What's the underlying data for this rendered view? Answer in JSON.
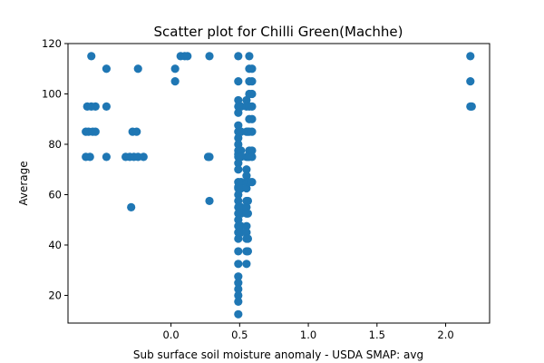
{
  "chart_data": {
    "type": "scatter",
    "title": "Scatter plot for Chilli Green(Machhe)",
    "xlabel": "Sub surface soil moisture anomaly - USDA SMAP: avg",
    "ylabel": "Average",
    "xlim": [
      -0.75,
      2.32
    ],
    "ylim": [
      9,
      120
    ],
    "xticks": [
      0.0,
      0.5,
      1.0,
      1.5,
      2.0
    ],
    "xtick_labels": [
      "0.0",
      "0.5",
      "1.0",
      "1.5",
      "2.0"
    ],
    "yticks": [
      20,
      40,
      60,
      80,
      100,
      120
    ],
    "ytick_labels": [
      "20",
      "40",
      "60",
      "80",
      "100",
      "120"
    ],
    "grid": false,
    "marker_color": "#1f77b4",
    "points": [
      {
        "x": -0.58,
        "y": 115
      },
      {
        "x": -0.47,
        "y": 110
      },
      {
        "x": -0.24,
        "y": 110
      },
      {
        "x": 0.03,
        "y": 110
      },
      {
        "x": 0.03,
        "y": 105
      },
      {
        "x": 0.07,
        "y": 115
      },
      {
        "x": 0.1,
        "y": 115
      },
      {
        "x": 0.12,
        "y": 115
      },
      {
        "x": 0.28,
        "y": 115
      },
      {
        "x": -0.61,
        "y": 95
      },
      {
        "x": -0.58,
        "y": 95
      },
      {
        "x": -0.55,
        "y": 95
      },
      {
        "x": -0.47,
        "y": 95
      },
      {
        "x": -0.62,
        "y": 85
      },
      {
        "x": -0.6,
        "y": 85
      },
      {
        "x": -0.57,
        "y": 85
      },
      {
        "x": -0.55,
        "y": 85
      },
      {
        "x": -0.28,
        "y": 85
      },
      {
        "x": -0.25,
        "y": 85
      },
      {
        "x": -0.62,
        "y": 75
      },
      {
        "x": -0.59,
        "y": 75
      },
      {
        "x": -0.47,
        "y": 75
      },
      {
        "x": -0.33,
        "y": 75
      },
      {
        "x": -0.3,
        "y": 75
      },
      {
        "x": -0.27,
        "y": 75
      },
      {
        "x": -0.24,
        "y": 75
      },
      {
        "x": -0.2,
        "y": 75
      },
      {
        "x": -0.29,
        "y": 55
      },
      {
        "x": 0.27,
        "y": 75
      },
      {
        "x": 0.28,
        "y": 75
      },
      {
        "x": 0.28,
        "y": 57.5
      },
      {
        "x": 0.49,
        "y": 115
      },
      {
        "x": 0.49,
        "y": 105
      },
      {
        "x": 0.49,
        "y": 97.5
      },
      {
        "x": 0.49,
        "y": 95
      },
      {
        "x": 0.49,
        "y": 92.5
      },
      {
        "x": 0.49,
        "y": 87.5
      },
      {
        "x": 0.49,
        "y": 85
      },
      {
        "x": 0.49,
        "y": 82.5
      },
      {
        "x": 0.49,
        "y": 80
      },
      {
        "x": 0.49,
        "y": 77.5
      },
      {
        "x": 0.49,
        "y": 76
      },
      {
        "x": 0.49,
        "y": 75
      },
      {
        "x": 0.49,
        "y": 72.5
      },
      {
        "x": 0.49,
        "y": 70
      },
      {
        "x": 0.49,
        "y": 65
      },
      {
        "x": 0.49,
        "y": 63
      },
      {
        "x": 0.49,
        "y": 62.5
      },
      {
        "x": 0.49,
        "y": 60
      },
      {
        "x": 0.49,
        "y": 57.5
      },
      {
        "x": 0.49,
        "y": 55
      },
      {
        "x": 0.49,
        "y": 52.5
      },
      {
        "x": 0.49,
        "y": 50
      },
      {
        "x": 0.49,
        "y": 47.5
      },
      {
        "x": 0.49,
        "y": 45
      },
      {
        "x": 0.49,
        "y": 42.5
      },
      {
        "x": 0.49,
        "y": 37.5
      },
      {
        "x": 0.49,
        "y": 32.5
      },
      {
        "x": 0.49,
        "y": 27.5
      },
      {
        "x": 0.49,
        "y": 25
      },
      {
        "x": 0.49,
        "y": 22.5
      },
      {
        "x": 0.49,
        "y": 20
      },
      {
        "x": 0.49,
        "y": 17.5
      },
      {
        "x": 0.49,
        "y": 12.5
      },
      {
        "x": 0.51,
        "y": 95
      },
      {
        "x": 0.51,
        "y": 85
      },
      {
        "x": 0.51,
        "y": 77.5
      },
      {
        "x": 0.51,
        "y": 75
      },
      {
        "x": 0.51,
        "y": 65
      },
      {
        "x": 0.51,
        "y": 62.5
      },
      {
        "x": 0.51,
        "y": 55
      },
      {
        "x": 0.51,
        "y": 52.5
      },
      {
        "x": 0.51,
        "y": 47.5
      },
      {
        "x": 0.51,
        "y": 45
      },
      {
        "x": 0.55,
        "y": 97.5
      },
      {
        "x": 0.55,
        "y": 95
      },
      {
        "x": 0.55,
        "y": 85
      },
      {
        "x": 0.55,
        "y": 75
      },
      {
        "x": 0.55,
        "y": 70
      },
      {
        "x": 0.55,
        "y": 67.5
      },
      {
        "x": 0.55,
        "y": 65
      },
      {
        "x": 0.55,
        "y": 62.5
      },
      {
        "x": 0.55,
        "y": 57.5
      },
      {
        "x": 0.55,
        "y": 55
      },
      {
        "x": 0.55,
        "y": 52.5
      },
      {
        "x": 0.55,
        "y": 47.5
      },
      {
        "x": 0.55,
        "y": 45
      },
      {
        "x": 0.55,
        "y": 42.5
      },
      {
        "x": 0.55,
        "y": 37.5
      },
      {
        "x": 0.55,
        "y": 32.5
      },
      {
        "x": 0.56,
        "y": 85
      },
      {
        "x": 0.56,
        "y": 75
      },
      {
        "x": 0.56,
        "y": 65
      },
      {
        "x": 0.56,
        "y": 57.5
      },
      {
        "x": 0.56,
        "y": 52.5
      },
      {
        "x": 0.56,
        "y": 42.5
      },
      {
        "x": 0.56,
        "y": 37.5
      },
      {
        "x": 0.57,
        "y": 115
      },
      {
        "x": 0.57,
        "y": 110
      },
      {
        "x": 0.57,
        "y": 105
      },
      {
        "x": 0.57,
        "y": 100
      },
      {
        "x": 0.57,
        "y": 95
      },
      {
        "x": 0.57,
        "y": 90
      },
      {
        "x": 0.57,
        "y": 85
      },
      {
        "x": 0.57,
        "y": 77.5
      },
      {
        "x": 0.57,
        "y": 75
      },
      {
        "x": 0.57,
        "y": 65
      },
      {
        "x": 0.59,
        "y": 110
      },
      {
        "x": 0.59,
        "y": 105
      },
      {
        "x": 0.59,
        "y": 100
      },
      {
        "x": 0.59,
        "y": 95
      },
      {
        "x": 0.59,
        "y": 90
      },
      {
        "x": 0.59,
        "y": 85
      },
      {
        "x": 0.59,
        "y": 77.5
      },
      {
        "x": 0.59,
        "y": 75
      },
      {
        "x": 0.59,
        "y": 65
      },
      {
        "x": 2.18,
        "y": 115
      },
      {
        "x": 2.18,
        "y": 105
      },
      {
        "x": 2.18,
        "y": 95
      },
      {
        "x": 2.19,
        "y": 95
      }
    ]
  }
}
